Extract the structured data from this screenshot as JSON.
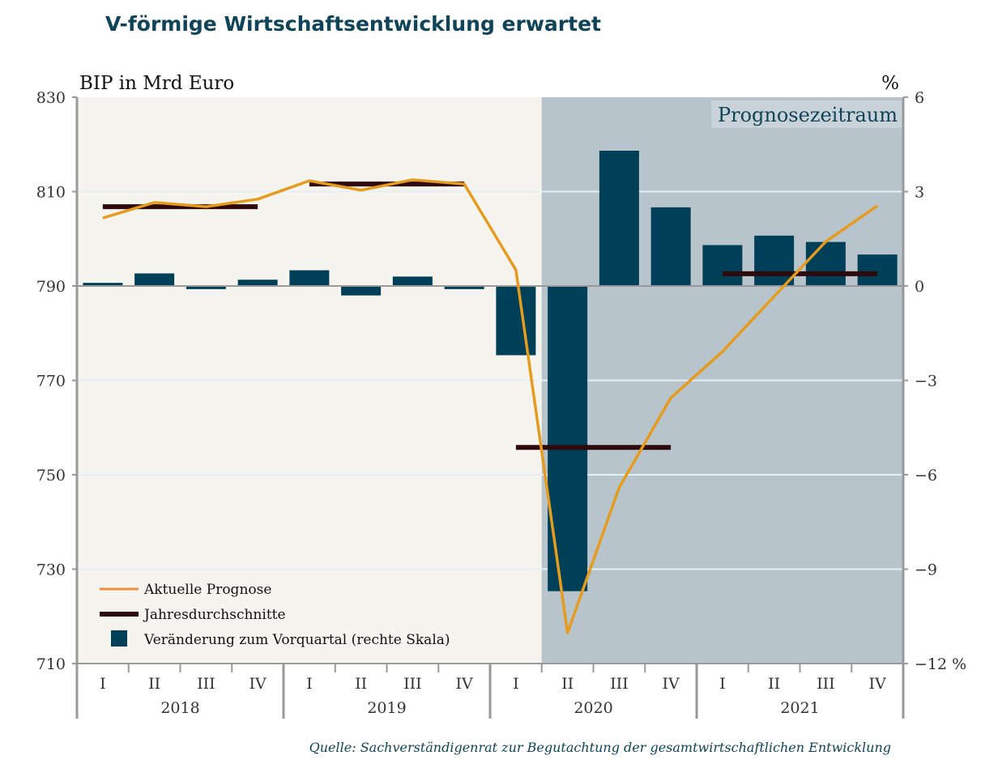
{
  "chart_data": {
    "type": "bar+line",
    "title": "V-förmige Wirtschaftsentwicklung erwartet",
    "ylabel_left": "BIP in Mrd Euro",
    "ylabel_right": "%",
    "forecast_label": "Prognosezeitraum",
    "source": "Quelle: Sachverständigenrat zur Begutachtung der gesamtwirtschaftlichen Entwicklung",
    "ylim_left": [
      710,
      830
    ],
    "yticks_left": [
      830,
      810,
      790,
      770,
      750,
      730,
      710
    ],
    "ylim_right": [
      -12,
      6
    ],
    "yticks_right": [
      "6",
      "3",
      "0",
      "−3",
      "−6",
      "−9",
      "−12 %"
    ],
    "years": [
      "2018",
      "2019",
      "2020",
      "2021"
    ],
    "quarters": [
      "I",
      "II",
      "III",
      "IV"
    ],
    "forecast_start_index": 9,
    "grid": true,
    "legend_position": "bottom-left",
    "series": [
      {
        "name": "Aktuelle Prognose",
        "kind": "line",
        "axis": "left",
        "color": "#e59b1e",
        "values": [
          804.4,
          807.7,
          806.8,
          808.4,
          812.3,
          810.3,
          812.5,
          811.6,
          793.4,
          716.5,
          747.3,
          766.3,
          776.1,
          787.8,
          799.4,
          807.0
        ]
      },
      {
        "name": "Jahresdurchschnitte",
        "kind": "step",
        "axis": "left",
        "color": "#2e0a0c",
        "values": [
          806.8,
          811.6,
          755.8,
          792.6
        ]
      },
      {
        "name": "Veränderung zum Vorquartal (rechte Skala)",
        "kind": "bar",
        "axis": "right",
        "color": "#003f58",
        "values": [
          0.1,
          0.4,
          -0.1,
          0.2,
          0.5,
          -0.3,
          0.3,
          -0.1,
          -2.2,
          -9.7,
          4.3,
          2.5,
          1.3,
          1.6,
          1.4,
          1.0
        ]
      }
    ],
    "colors": {
      "title": "#0f4459",
      "plot_bg": "#f5f4ef",
      "forecast_bg": "#b8c4cc",
      "axis": "#999999"
    }
  }
}
